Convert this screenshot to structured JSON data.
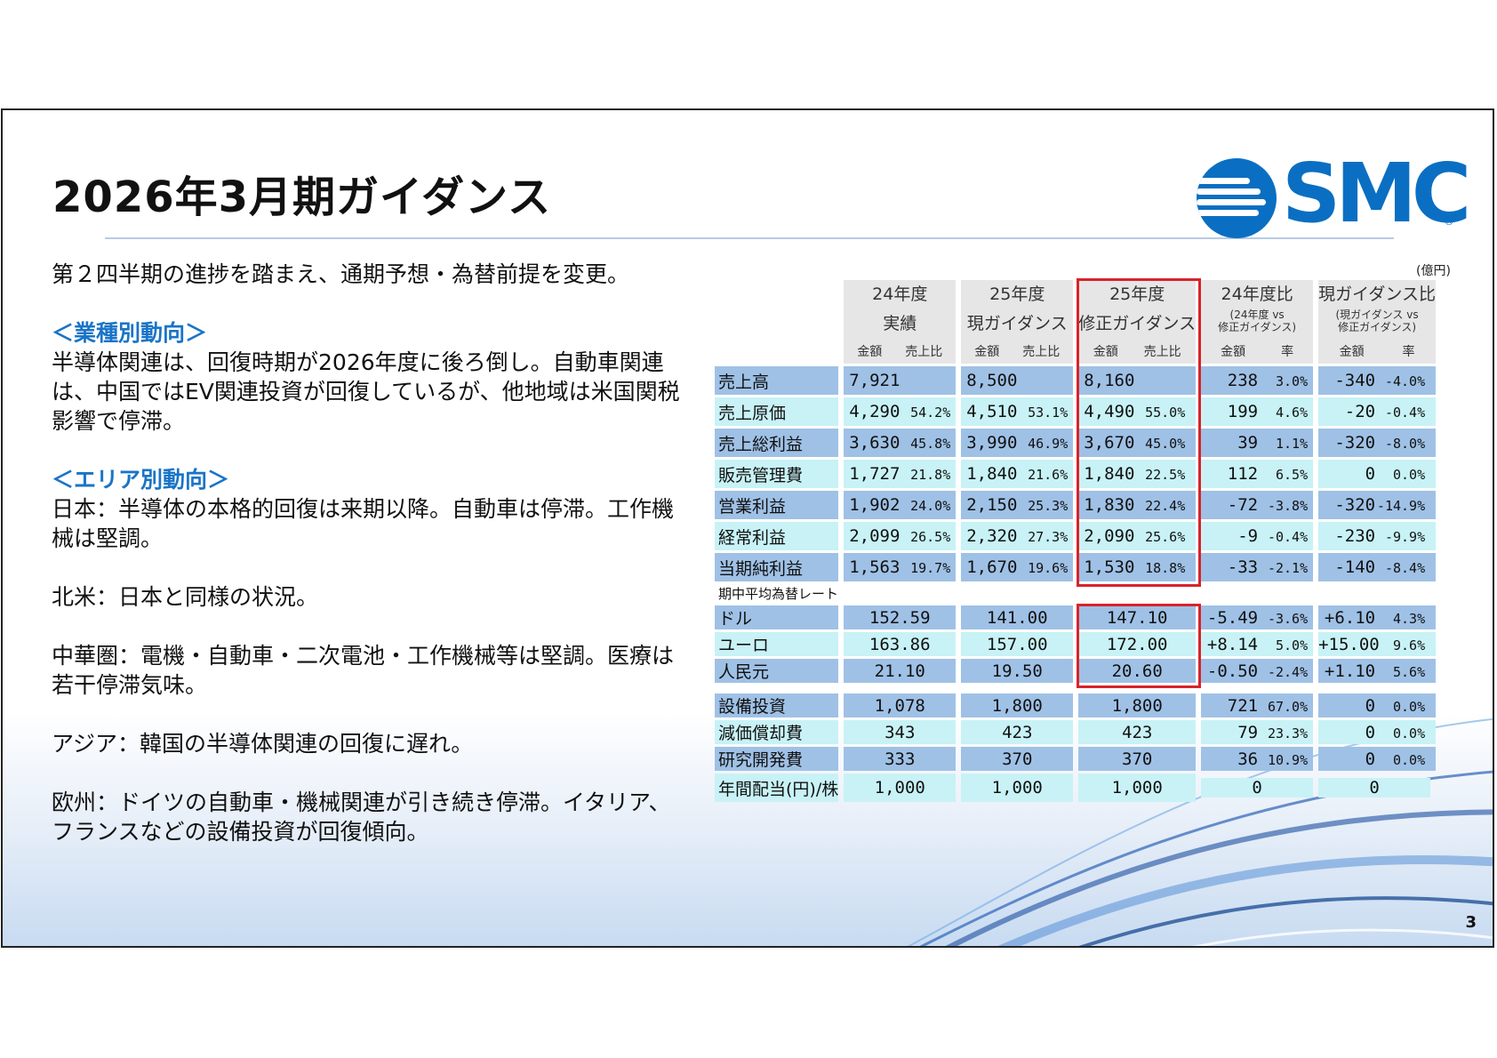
{
  "title": "2026年3月期ガイダンス",
  "logo": {
    "text": "SMC",
    "mark": "®"
  },
  "page_number": "3",
  "unit": "(億円)",
  "left": {
    "intro": "第２四半期の進捗を踏まえ、通期予想・為替前提を変更。",
    "industry_head": "＜業種別動向＞",
    "industry_text": "半導体関連は、回復時期が2026年度に後ろ倒し。自動車関連は、中国ではEV関連投資が回復しているが、他地域は米国関税影響で停滞。",
    "area_head": "＜エリア別動向＞",
    "japan": "日本：半導体の本格的回復は来期以降。自動車は停滞。工作機械は堅調。",
    "na": "北米：日本と同様の状況。",
    "china": "中華圏：電機・自動車・二次電池・工作機械等は堅調。医療は若干停滞気味。",
    "asia": "アジア：韓国の半導体関連の回復に遅れ。",
    "europe": "欧州：ドイツの自動車・機械関連が引き続き停滞。イタリア、フランスなどの設備投資が回復傾向。"
  },
  "table": {
    "columns": [
      {
        "top": "24年度",
        "bottom": "実績",
        "a": "金額",
        "b": "売上比"
      },
      {
        "top": "25年度",
        "bottom": "現ガイダンス",
        "a": "金額",
        "b": "売上比"
      },
      {
        "top": "25年度",
        "bottom": "修正ガイダンス",
        "a": "金額",
        "b": "売上比"
      },
      {
        "top": "24年度比",
        "bottom": "(24年度 vs",
        "bottom2": "修正ガイダンス)",
        "a": "金額",
        "b": "率"
      },
      {
        "top": "現ガイダンス比",
        "bottom": "(現ガイダンス vs",
        "bottom2": "修正ガイダンス)",
        "a": "金額",
        "b": "率"
      }
    ],
    "rows": [
      {
        "label": "売上高",
        "v": [
          [
            "7,921",
            ""
          ],
          [
            "8,500",
            ""
          ],
          [
            "8,160",
            ""
          ],
          [
            "238",
            "3.0%"
          ],
          [
            "-340",
            "-4.0%"
          ]
        ]
      },
      {
        "label": "売上原価",
        "v": [
          [
            "4,290",
            "54.2%"
          ],
          [
            "4,510",
            "53.1%"
          ],
          [
            "4,490",
            "55.0%"
          ],
          [
            "199",
            "4.6%"
          ],
          [
            "-20",
            "-0.4%"
          ]
        ]
      },
      {
        "label": "売上総利益",
        "v": [
          [
            "3,630",
            "45.8%"
          ],
          [
            "3,990",
            "46.9%"
          ],
          [
            "3,670",
            "45.0%"
          ],
          [
            "39",
            "1.1%"
          ],
          [
            "-320",
            "-8.0%"
          ]
        ]
      },
      {
        "label": "販売管理費",
        "v": [
          [
            "1,727",
            "21.8%"
          ],
          [
            "1,840",
            "21.6%"
          ],
          [
            "1,840",
            "22.5%"
          ],
          [
            "112",
            "6.5%"
          ],
          [
            "0",
            "0.0%"
          ]
        ]
      },
      {
        "label": "営業利益",
        "v": [
          [
            "1,902",
            "24.0%"
          ],
          [
            "2,150",
            "25.3%"
          ],
          [
            "1,830",
            "22.4%"
          ],
          [
            "-72",
            "-3.8%"
          ],
          [
            "-320",
            "-14.9%"
          ]
        ]
      },
      {
        "label": "経常利益",
        "v": [
          [
            "2,099",
            "26.5%"
          ],
          [
            "2,320",
            "27.3%"
          ],
          [
            "2,090",
            "25.6%"
          ],
          [
            "-9",
            "-0.4%"
          ],
          [
            "-230",
            "-9.9%"
          ]
        ]
      },
      {
        "label": "当期純利益",
        "v": [
          [
            "1,563",
            "19.7%"
          ],
          [
            "1,670",
            "19.6%"
          ],
          [
            "1,530",
            "18.8%"
          ],
          [
            "-33",
            "-2.1%"
          ],
          [
            "-140",
            "-8.4%"
          ]
        ]
      }
    ],
    "fx_header": "期中平均為替レート",
    "fx_rows": [
      {
        "label": "ドル",
        "v": [
          "152.59",
          "141.00",
          "147.10"
        ],
        "d": [
          [
            "-5.49",
            "-3.6%"
          ],
          [
            "+6.10",
            "4.3%"
          ]
        ]
      },
      {
        "label": "ユーロ",
        "v": [
          "163.86",
          "157.00",
          "172.00"
        ],
        "d": [
          [
            "+8.14",
            "5.0%"
          ],
          [
            "+15.00",
            "9.6%"
          ]
        ]
      },
      {
        "label": "人民元",
        "v": [
          "21.10",
          "19.50",
          "20.60"
        ],
        "d": [
          [
            "-0.50",
            "-2.4%"
          ],
          [
            "+1.10",
            "5.6%"
          ]
        ]
      }
    ],
    "other_rows": [
      {
        "label": "設備投資",
        "v": [
          "1,078",
          "1,800",
          "1,800"
        ],
        "d": [
          [
            "721",
            "67.0%"
          ],
          [
            "0",
            "0.0%"
          ]
        ]
      },
      {
        "label": "減価償却費",
        "v": [
          "343",
          "423",
          "423"
        ],
        "d": [
          [
            "79",
            "23.3%"
          ],
          [
            "0",
            "0.0%"
          ]
        ]
      },
      {
        "label": "研究開発費",
        "v": [
          "333",
          "370",
          "370"
        ],
        "d": [
          [
            "36",
            "10.9%"
          ],
          [
            "0",
            "0.0%"
          ]
        ]
      }
    ],
    "dividend": {
      "label": "年間配当(円)/株",
      "v": [
        "1,000",
        "1,000",
        "1,000"
      ],
      "d": [
        "0",
        "0"
      ]
    }
  }
}
